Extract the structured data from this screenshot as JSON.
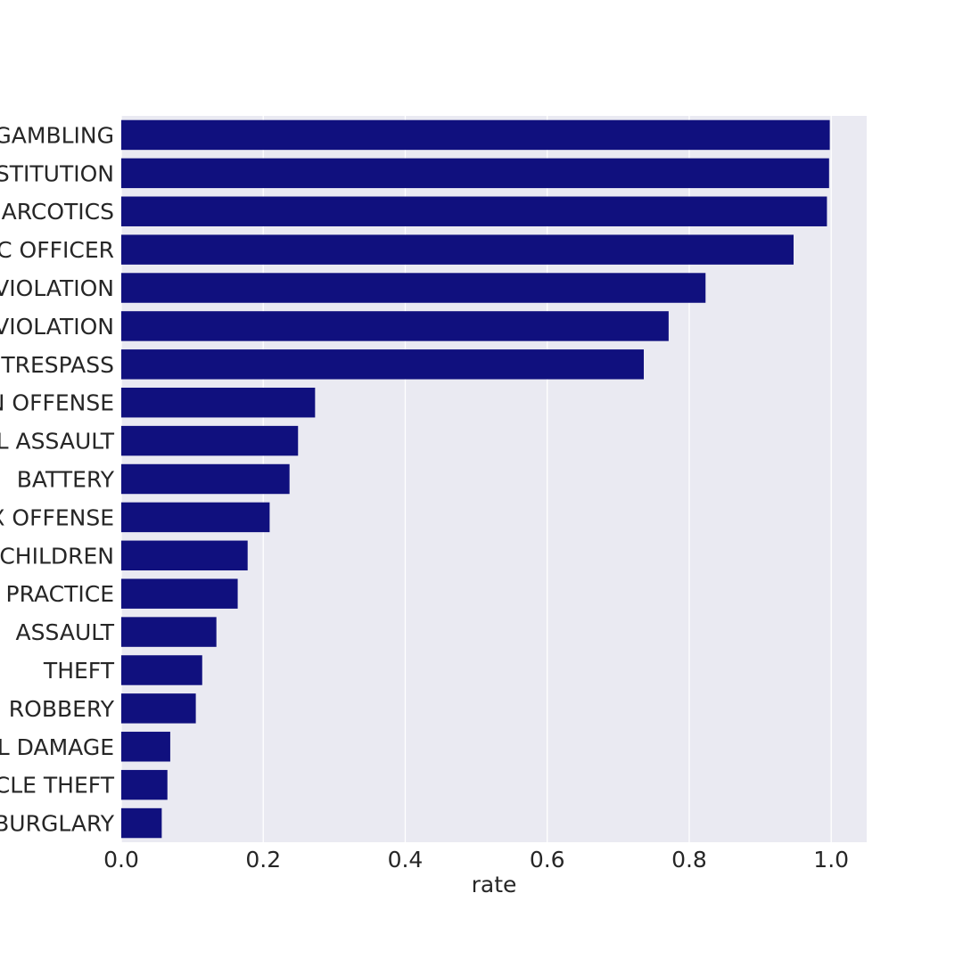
{
  "chart_data": {
    "type": "bar",
    "orientation": "horizontal",
    "title": "",
    "xlabel": "rate",
    "ylabel": "",
    "xlim": [
      0,
      1.05
    ],
    "grid": true,
    "x_ticks": [
      "0.0",
      "0.2",
      "0.4",
      "0.6",
      "0.8",
      "1.0"
    ],
    "categories": [
      "GAMBLING",
      "PROSTITUTION",
      "NARCOTICS",
      "INTERFERENCE WITH PUBLIC OFFICER",
      "LIQUOR LAW VIOLATION",
      "WEAPONS VIOLATION",
      "CRIMINAL TRESPASS",
      "PUBLIC PEACE VIOLATION OFFENSE",
      "CRIM SEXUAL ASSAULT",
      "BATTERY",
      "SEX OFFENSE",
      "OFFENSE INVOLVING CHILDREN",
      "DECEPTIVE PRACTICE",
      "ASSAULT",
      "THEFT",
      "ROBBERY",
      "CRIMINAL DAMAGE",
      "MOTOR VEHICLE THEFT",
      "BURGLARY"
    ],
    "values": [
      0.998,
      0.997,
      0.994,
      0.947,
      0.823,
      0.771,
      0.736,
      0.273,
      0.249,
      0.237,
      0.209,
      0.178,
      0.164,
      0.134,
      0.114,
      0.105,
      0.069,
      0.065,
      0.057
    ],
    "colors": {
      "bar": "#10107e",
      "background": "#eaeaf2",
      "grid": "#ffffff",
      "text": "#262626"
    }
  }
}
